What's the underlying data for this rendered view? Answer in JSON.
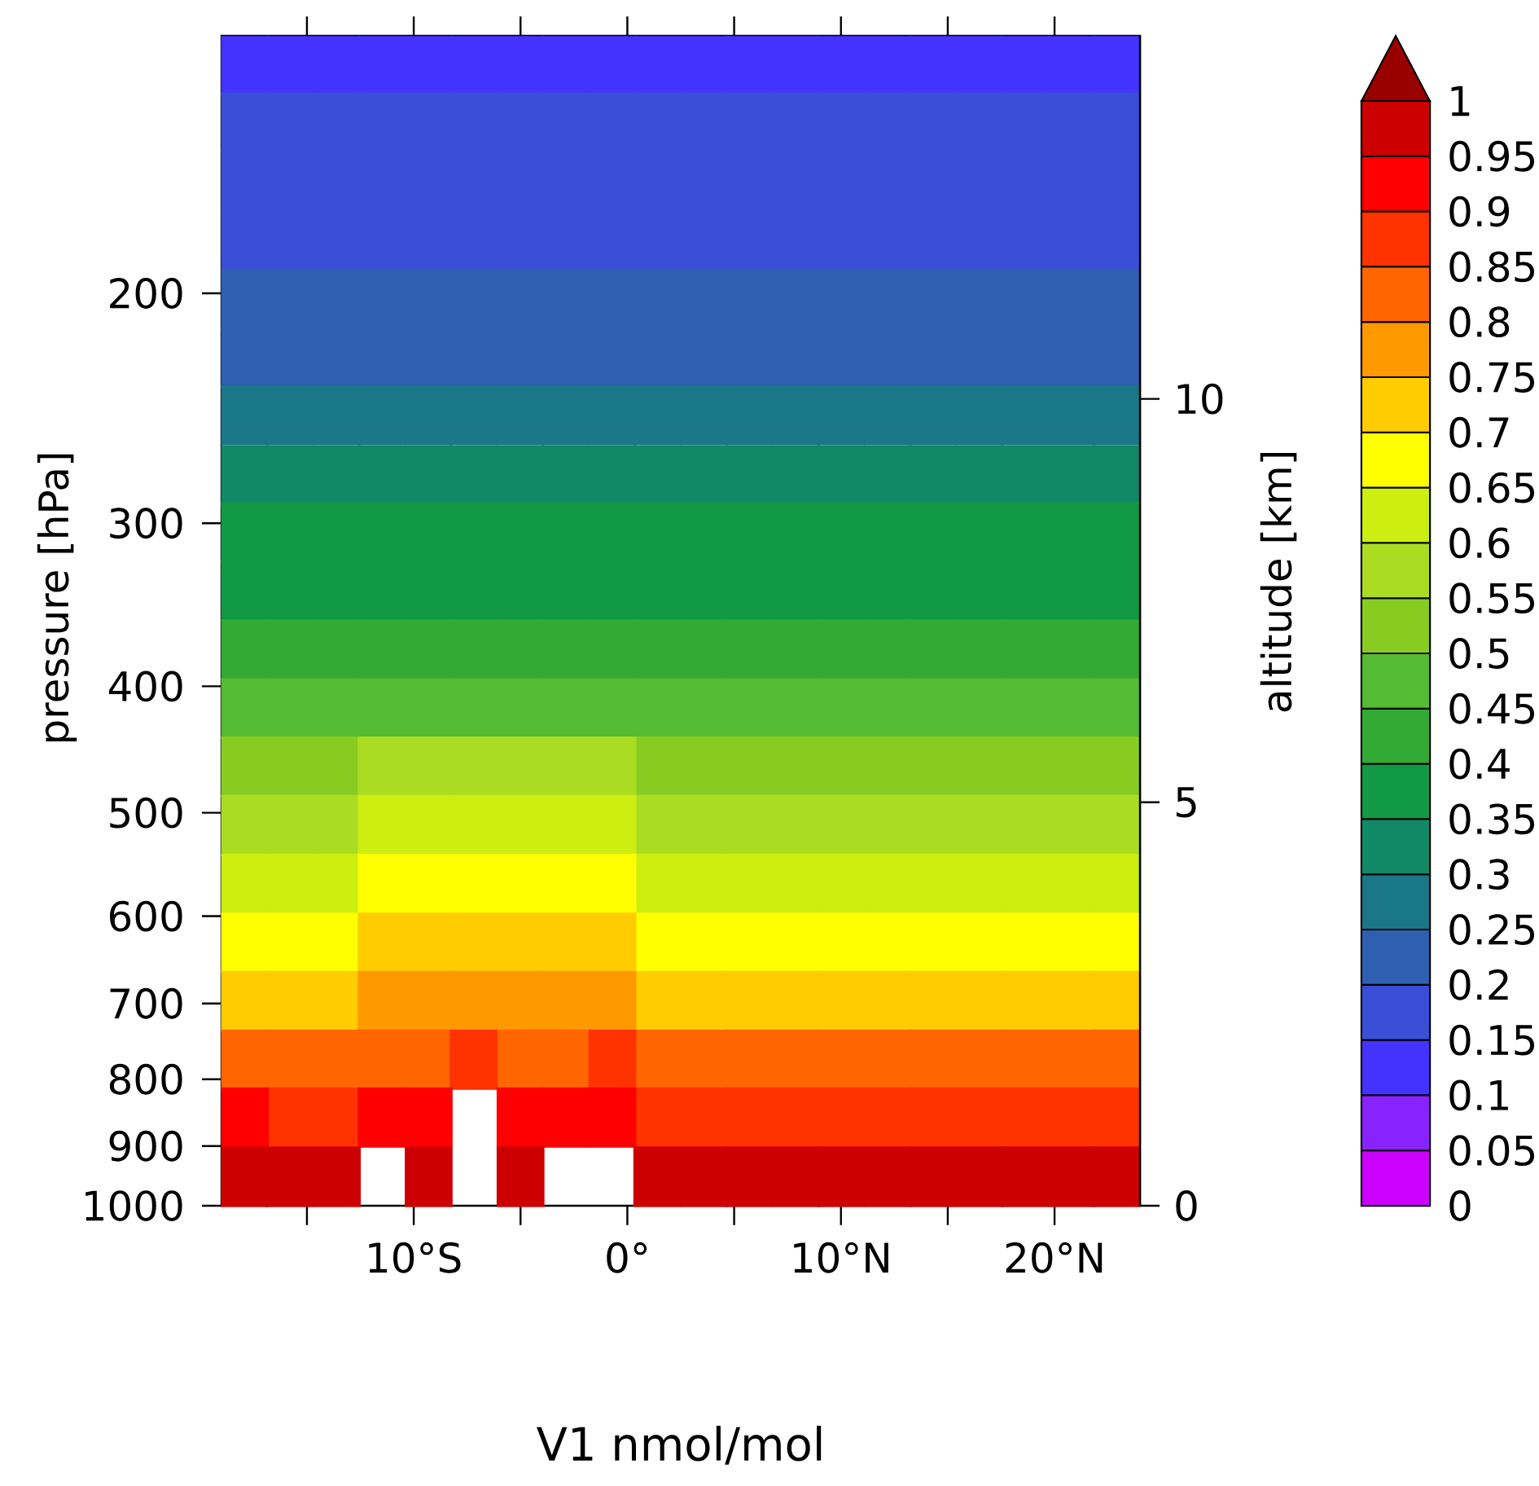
{
  "chart_data": {
    "type": "scatter",
    "title": "V1 nmol/mol",
    "ylabel": "pressure [hPa]",
    "y2label": "altitude [km]",
    "marker": "square",
    "log": "y",
    "x": [
      -17.9,
      -15.8,
      -13.6,
      -11.5,
      -9.3,
      -7.2,
      -5.0,
      -2.9,
      -0.7,
      1.4,
      3.6,
      5.7,
      7.9,
      10.0,
      12.2,
      14.3,
      16.5,
      18.6,
      20.8,
      22.9
    ],
    "series": [
      {
        "values": [
          134,
          134,
          134,
          134,
          134,
          134,
          134,
          134,
          134,
          134,
          134,
          134,
          134,
          134,
          134,
          134,
          134,
          134,
          134,
          134
        ],
        "cvalues": [
          0.13,
          0.13,
          0.13,
          0.13,
          0.13,
          0.13,
          0.13,
          0.13,
          0.13,
          0.13,
          0.13,
          0.13,
          0.13,
          0.13,
          0.13,
          0.13,
          0.13,
          0.13,
          0.13,
          0.13
        ]
      },
      {
        "values": [
          148,
          148,
          148,
          148,
          148,
          148,
          148,
          148,
          148,
          148,
          148,
          148,
          148,
          148,
          148,
          148,
          148,
          148,
          148,
          148
        ],
        "cvalues": [
          0.16,
          0.16,
          0.16,
          0.16,
          0.16,
          0.16,
          0.16,
          0.16,
          0.16,
          0.16,
          0.16,
          0.16,
          0.16,
          0.16,
          0.16,
          0.16,
          0.16,
          0.16,
          0.16,
          0.16
        ]
      },
      {
        "values": [
          164,
          164,
          164,
          164,
          164,
          164,
          164,
          164,
          164,
          164,
          164,
          164,
          164,
          164,
          164,
          164,
          164,
          164,
          164,
          164
        ],
        "cvalues": [
          0.17,
          0.17,
          0.17,
          0.17,
          0.17,
          0.17,
          0.17,
          0.17,
          0.17,
          0.17,
          0.17,
          0.17,
          0.17,
          0.17,
          0.17,
          0.17,
          0.17,
          0.17,
          0.17,
          0.17
        ]
      },
      {
        "values": [
          182,
          182,
          182,
          182,
          182,
          182,
          182,
          182,
          182,
          182,
          182,
          182,
          182,
          182,
          182,
          182,
          182,
          182,
          182,
          182
        ],
        "cvalues": [
          0.18,
          0.18,
          0.18,
          0.18,
          0.18,
          0.18,
          0.18,
          0.18,
          0.18,
          0.18,
          0.18,
          0.18,
          0.18,
          0.18,
          0.18,
          0.18,
          0.18,
          0.18,
          0.18,
          0.18
        ]
      },
      {
        "values": [
          202,
          202,
          202,
          202,
          202,
          202,
          202,
          202,
          202,
          202,
          202,
          202,
          202,
          202,
          202,
          202,
          202,
          202,
          202,
          202
        ],
        "cvalues": [
          0.21,
          0.21,
          0.21,
          0.21,
          0.21,
          0.21,
          0.21,
          0.21,
          0.21,
          0.21,
          0.21,
          0.21,
          0.21,
          0.21,
          0.21,
          0.21,
          0.21,
          0.21,
          0.21,
          0.21
        ]
      },
      {
        "values": [
          224,
          224,
          224,
          224,
          224,
          224,
          224,
          224,
          224,
          224,
          224,
          224,
          224,
          224,
          224,
          224,
          224,
          224,
          224,
          224
        ],
        "cvalues": [
          0.24,
          0.24,
          0.24,
          0.24,
          0.24,
          0.24,
          0.24,
          0.24,
          0.24,
          0.24,
          0.24,
          0.24,
          0.24,
          0.24,
          0.24,
          0.24,
          0.24,
          0.24,
          0.24,
          0.24
        ]
      },
      {
        "values": [
          248,
          248,
          248,
          248,
          248,
          248,
          248,
          248,
          248,
          248,
          248,
          248,
          248,
          248,
          248,
          248,
          248,
          248,
          248,
          248
        ],
        "cvalues": [
          0.27,
          0.27,
          0.27,
          0.27,
          0.27,
          0.27,
          0.27,
          0.27,
          0.27,
          0.27,
          0.27,
          0.27,
          0.27,
          0.27,
          0.27,
          0.27,
          0.27,
          0.27,
          0.27,
          0.27
        ]
      },
      {
        "values": [
          276,
          276,
          276,
          276,
          276,
          276,
          276,
          276,
          276,
          276,
          276,
          276,
          276,
          276,
          276,
          276,
          276,
          276,
          276,
          276
        ],
        "cvalues": [
          0.31,
          0.31,
          0.31,
          0.31,
          0.31,
          0.31,
          0.31,
          0.31,
          0.31,
          0.31,
          0.31,
          0.31,
          0.31,
          0.31,
          0.31,
          0.31,
          0.31,
          0.31,
          0.31,
          0.31
        ]
      },
      {
        "values": [
          305,
          305,
          305,
          305,
          305,
          305,
          305,
          305,
          305,
          305,
          305,
          305,
          305,
          305,
          305,
          305,
          305,
          305,
          305,
          305
        ],
        "cvalues": [
          0.35,
          0.35,
          0.35,
          0.35,
          0.35,
          0.35,
          0.35,
          0.35,
          0.35,
          0.35,
          0.35,
          0.35,
          0.35,
          0.35,
          0.35,
          0.35,
          0.35,
          0.35,
          0.35,
          0.35
        ]
      },
      {
        "values": [
          338,
          338,
          338,
          338,
          338,
          338,
          338,
          338,
          338,
          338,
          338,
          338,
          338,
          338,
          338,
          338,
          338,
          338,
          338,
          338
        ],
        "cvalues": [
          0.39,
          0.39,
          0.39,
          0.39,
          0.39,
          0.39,
          0.39,
          0.39,
          0.39,
          0.39,
          0.39,
          0.39,
          0.39,
          0.39,
          0.39,
          0.39,
          0.39,
          0.39,
          0.39,
          0.39
        ]
      },
      {
        "values": [
          375,
          375,
          375,
          375,
          375,
          375,
          375,
          375,
          375,
          375,
          375,
          375,
          375,
          375,
          375,
          375,
          375,
          375,
          375,
          375
        ],
        "cvalues": [
          0.43,
          0.43,
          0.43,
          0.43,
          0.43,
          0.43,
          0.43,
          0.43,
          0.43,
          0.43,
          0.43,
          0.43,
          0.43,
          0.43,
          0.43,
          0.43,
          0.43,
          0.43,
          0.43,
          0.43
        ]
      },
      {
        "values": [
          416,
          416,
          416,
          416,
          416,
          416,
          416,
          416,
          416,
          416,
          416,
          416,
          416,
          416,
          416,
          416,
          416,
          416,
          416,
          416
        ],
        "cvalues": [
          0.48,
          0.48,
          0.48,
          0.48,
          0.48,
          0.48,
          0.48,
          0.48,
          0.48,
          0.48,
          0.48,
          0.48,
          0.48,
          0.48,
          0.48,
          0.48,
          0.48,
          0.48,
          0.48,
          0.48
        ]
      },
      {
        "x": [
          -17.9,
          -15.8,
          -13.6,
          1.4,
          3.6,
          5.7,
          7.9,
          10.0,
          12.2,
          14.3,
          16.5,
          18.6,
          20.8,
          22.9
        ],
        "values": [
          461,
          461,
          461,
          461,
          461,
          461,
          461,
          461,
          461,
          461,
          461,
          461,
          461,
          461
        ],
        "cvalues": [
          0.53,
          0.53,
          0.53,
          0.53,
          0.53,
          0.53,
          0.53,
          0.53,
          0.53,
          0.53,
          0.53,
          0.53,
          0.53,
          0.53
        ]
      },
      {
        "x": [
          -11.5,
          -9.3,
          -7.2,
          -5.0,
          -2.9,
          -0.7
        ],
        "values": [
          461,
          461,
          461,
          461,
          461,
          461
        ],
        "cvalues": [
          0.56,
          0.56,
          0.56,
          0.56,
          0.56,
          0.56
        ]
      },
      {
        "x": [
          -17.9,
          -15.8,
          -13.6,
          1.4,
          3.6,
          5.7,
          7.9,
          10.0,
          12.2,
          14.3,
          16.5,
          18.6,
          20.8,
          22.9
        ],
        "values": [
          511,
          511,
          511,
          511,
          511,
          511,
          511,
          511,
          511,
          511,
          511,
          511,
          511,
          511
        ],
        "cvalues": [
          0.58,
          0.58,
          0.58,
          0.58,
          0.58,
          0.58,
          0.58,
          0.58,
          0.58,
          0.58,
          0.58,
          0.58,
          0.58,
          0.58
        ]
      },
      {
        "x": [
          -11.5,
          -9.3,
          -7.2,
          -5.0,
          -2.9,
          -0.7
        ],
        "values": [
          511,
          511,
          511,
          511,
          511,
          511
        ],
        "cvalues": [
          0.61,
          0.61,
          0.61,
          0.61,
          0.61,
          0.61
        ]
      },
      {
        "x": [
          -17.9,
          -15.8,
          -13.6,
          1.4,
          3.6,
          5.7,
          7.9,
          10.0,
          12.2,
          14.3,
          16.5,
          18.6,
          20.8,
          22.9
        ],
        "values": [
          567,
          567,
          567,
          567,
          567,
          567,
          567,
          567,
          567,
          567,
          567,
          567,
          567,
          567
        ],
        "cvalues": [
          0.63,
          0.63,
          0.63,
          0.63,
          0.63,
          0.63,
          0.63,
          0.63,
          0.63,
          0.63,
          0.63,
          0.63,
          0.63,
          0.63
        ]
      },
      {
        "x": [
          -11.5,
          -9.3,
          -7.2,
          -5.0,
          -2.9,
          -0.7
        ],
        "values": [
          567,
          567,
          567,
          567,
          567,
          567
        ],
        "cvalues": [
          0.66,
          0.66,
          0.66,
          0.66,
          0.66,
          0.66
        ]
      },
      {
        "x": [
          -17.9,
          -15.8,
          -13.6,
          1.4,
          3.6,
          5.7,
          7.9,
          10.0,
          12.2,
          14.3,
          16.5,
          18.6,
          20.8,
          22.9
        ],
        "values": [
          629,
          629,
          629,
          629,
          629,
          629,
          629,
          629,
          629,
          629,
          629,
          629,
          629,
          629
        ],
        "cvalues": [
          0.69,
          0.69,
          0.69,
          0.69,
          0.69,
          0.69,
          0.69,
          0.69,
          0.69,
          0.69,
          0.69,
          0.69,
          0.69,
          0.69
        ]
      },
      {
        "x": [
          -11.5,
          -9.3,
          -7.2,
          -5.0,
          -2.9,
          -0.7
        ],
        "values": [
          629,
          629,
          629,
          629,
          629,
          629
        ],
        "cvalues": [
          0.72,
          0.72,
          0.72,
          0.72,
          0.72,
          0.72
        ]
      },
      {
        "x": [
          -17.9,
          -15.8,
          -13.6,
          1.4,
          3.6,
          5.7,
          7.9,
          10.0,
          12.2,
          14.3,
          16.5,
          18.6,
          20.8,
          22.9
        ],
        "values": [
          697,
          697,
          697,
          697,
          697,
          697,
          697,
          697,
          697,
          697,
          697,
          697,
          697,
          697
        ],
        "cvalues": [
          0.73,
          0.73,
          0.73,
          0.73,
          0.73,
          0.73,
          0.73,
          0.73,
          0.73,
          0.73,
          0.73,
          0.73,
          0.73,
          0.73
        ]
      },
      {
        "x": [
          -11.5,
          -9.3,
          -7.2,
          -5.0,
          -2.9,
          -0.7
        ],
        "values": [
          697,
          697,
          697,
          697,
          697,
          697
        ],
        "cvalues": [
          0.76,
          0.76,
          0.76,
          0.76,
          0.76,
          0.76
        ]
      },
      {
        "x": [
          -17.9,
          -15.8,
          -13.6,
          1.4,
          3.6,
          5.7,
          7.9,
          10.0,
          12.2,
          14.3,
          16.5,
          18.6,
          20.8,
          22.9
        ],
        "values": [
          773,
          773,
          773,
          773,
          773,
          773,
          773,
          773,
          773,
          773,
          773,
          773,
          773,
          773
        ],
        "cvalues": [
          0.81,
          0.81,
          0.81,
          0.81,
          0.81,
          0.81,
          0.81,
          0.81,
          0.81,
          0.81,
          0.81,
          0.81,
          0.81,
          0.81
        ]
      },
      {
        "x": [
          -11.5,
          -9.3,
          -5.0,
          -2.9
        ],
        "values": [
          773,
          773,
          773,
          773
        ],
        "cvalues": [
          0.84,
          0.84,
          0.84,
          0.84
        ]
      },
      {
        "x": [
          -7.2,
          -0.7
        ],
        "values": [
          773,
          773
        ],
        "cvalues": [
          0.86,
          0.86
        ]
      },
      {
        "x": [
          -15.8,
          -13.6,
          1.4,
          3.6,
          5.7,
          7.9,
          10.0,
          12.2,
          14.3,
          16.5,
          18.6,
          20.8,
          22.9
        ],
        "values": [
          856,
          856,
          856,
          856,
          856,
          856,
          856,
          856,
          856,
          856,
          856,
          856,
          856
        ],
        "cvalues": [
          0.89,
          0.89,
          0.89,
          0.89,
          0.89,
          0.89,
          0.89,
          0.89,
          0.89,
          0.89,
          0.89,
          0.89,
          0.89
        ]
      },
      {
        "x": [
          -17.9,
          -11.5,
          -9.3,
          -5.0,
          -2.9
        ],
        "values": [
          856,
          856,
          856,
          856,
          856
        ],
        "cvalues": [
          0.92,
          0.92,
          0.92,
          0.92,
          0.92
        ]
      },
      {
        "x": [
          -0.7
        ],
        "values": [
          856
        ],
        "cvalues": [
          0.94
        ]
      },
      {
        "x": [
          -17.9,
          -15.8,
          -13.6,
          -9.3,
          -5.0,
          1.4,
          3.6,
          5.7,
          7.9,
          10.0,
          12.2,
          14.3,
          16.5,
          18.6,
          20.8,
          22.9
        ],
        "values": [
          950,
          950,
          950,
          950,
          950,
          950,
          950,
          950,
          950,
          950,
          950,
          950,
          950,
          950,
          950,
          950
        ],
        "cvalues": [
          0.97,
          0.97,
          0.97,
          0.97,
          0.97,
          0.97,
          0.97,
          0.97,
          0.97,
          0.97,
          0.97,
          0.97,
          0.97,
          0.97,
          0.97,
          0.97
        ]
      }
    ],
    "clim": [
      0,
      1
    ],
    "cticks": [
      0,
      0.05,
      0.1,
      0.15,
      0.2,
      0.25,
      0.3,
      0.35,
      0.4,
      0.45,
      0.5,
      0.55,
      0.6,
      0.65,
      0.7,
      0.75,
      0.8,
      0.85,
      0.9,
      0.95,
      1
    ],
    "xlim": [
      -19,
      24
    ],
    "xticks": [
      {
        "value": -15,
        "label": null
      },
      {
        "value": -10,
        "label": "10°S"
      },
      {
        "value": -5,
        "label": null
      },
      {
        "value": 0,
        "label": "0°"
      },
      {
        "value": 5,
        "label": null
      },
      {
        "value": 10,
        "label": "10°N"
      },
      {
        "value": 15,
        "label": null
      },
      {
        "value": 20,
        "label": "20°N"
      }
    ],
    "ylim": [
      1000,
      127
    ],
    "yticks": [
      1000,
      900,
      800,
      700,
      600,
      500,
      400,
      300,
      200
    ],
    "y2lim": [
      0,
      14.5
    ],
    "y2ticks": [
      0,
      5,
      10
    ]
  }
}
